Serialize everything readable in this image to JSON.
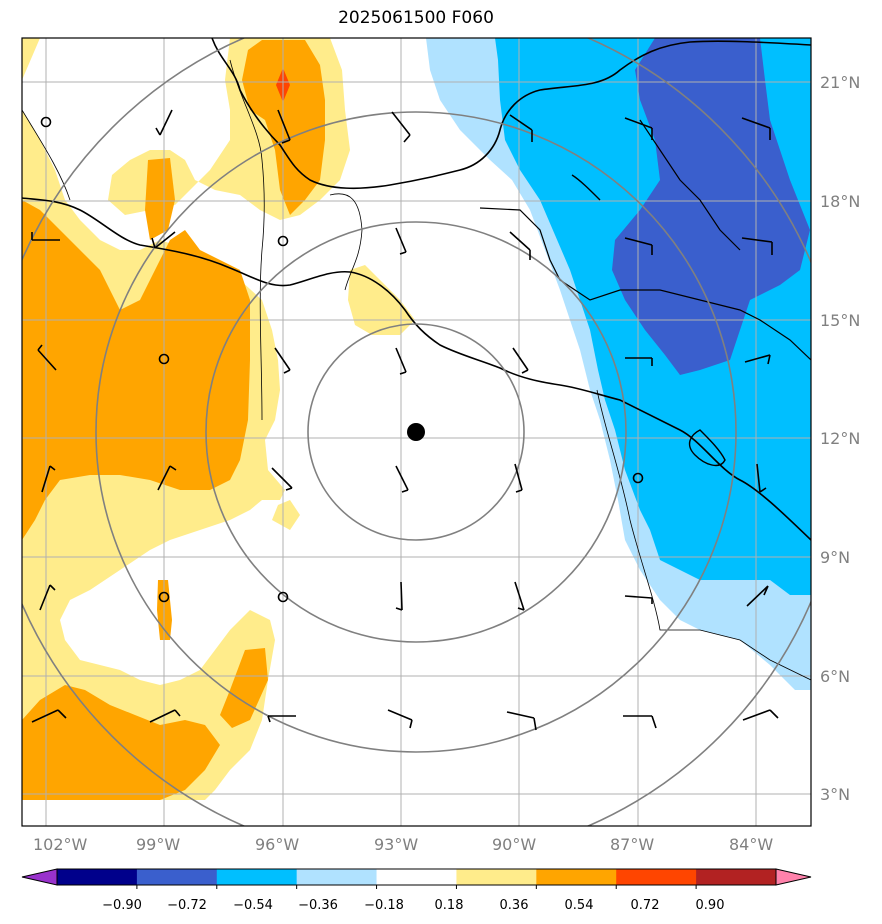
{
  "title": "2025061500 F060",
  "lon_labels": [
    "102°W",
    "99°W",
    "96°W",
    "93°W",
    "90°W",
    "87°W",
    "84°W"
  ],
  "lat_labels": [
    "21°N",
    "18°N",
    "15°N",
    "12°N",
    "9°N",
    "6°N",
    "3°N"
  ],
  "colorbar": {
    "ticks": [
      "−0.90",
      "−0.72",
      "−0.54",
      "−0.36",
      "−0.18",
      "0.18",
      "0.36",
      "0.54",
      "0.72",
      "0.90"
    ],
    "colors": [
      "#9932cc",
      "#00008b",
      "#3a5fcd",
      "#00bfff",
      "#b0e2ff",
      "#ffffff",
      "#ffec8b",
      "#ffa500",
      "#ff4500",
      "#b22222",
      "#ff82ab"
    ]
  },
  "colors": {
    "pale_blue": "#b0e2ff",
    "sky_blue": "#00bfff",
    "royal_blue": "#3a5fcd",
    "pale_yellow": "#ffec8b",
    "orange": "#ffa500",
    "red_orange": "#ff4500"
  },
  "storm_center": {
    "lon": -92.6,
    "lat": 12.2
  }
}
